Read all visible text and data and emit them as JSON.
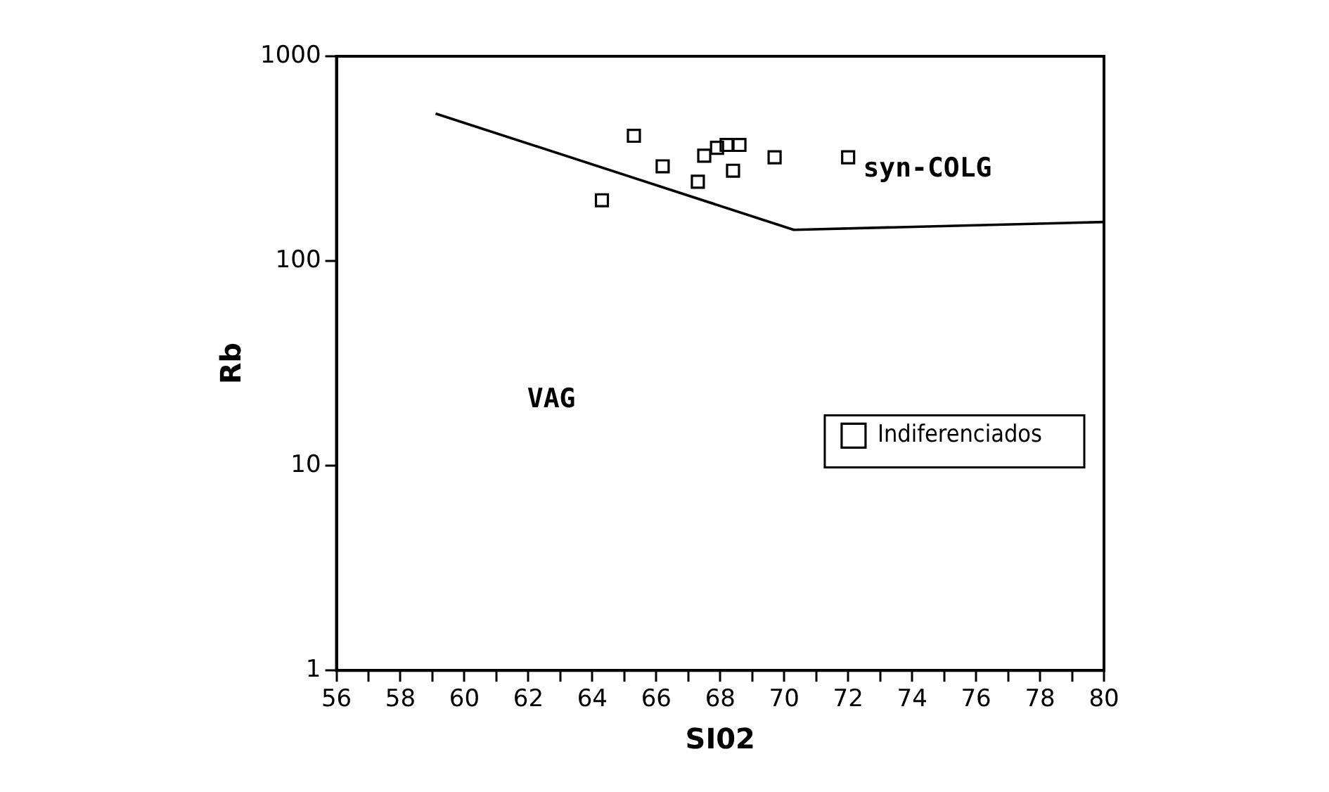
{
  "chart_data": {
    "type": "scatter",
    "xlabel": "SI02",
    "ylabel": "Rb",
    "xlim": [
      56,
      80
    ],
    "ylim": [
      1,
      1000
    ],
    "log": "y",
    "xticks": [
      56,
      {
        "value": 57,
        "label": null
      },
      58,
      {
        "value": 59,
        "label": null
      },
      60,
      {
        "value": 61,
        "label": null
      },
      62,
      {
        "value": 63,
        "label": null
      },
      64,
      {
        "value": 65,
        "label": null
      },
      66,
      {
        "value": 67,
        "label": null
      },
      68,
      {
        "value": 69,
        "label": null
      },
      70,
      {
        "value": 71,
        "label": null
      },
      72,
      {
        "value": 73,
        "label": null
      },
      74,
      {
        "value": 75,
        "label": null
      },
      76,
      {
        "value": 77,
        "label": null
      },
      78,
      {
        "value": 79,
        "label": null
      },
      80
    ],
    "yticks": [
      1,
      10,
      100,
      1000
    ],
    "grid": false,
    "legend": "bottom right",
    "marker": "square",
    "series": [
      {
        "name": "Indiferenciados",
        "color": "#000000",
        "x": [
          64.3,
          65.3,
          66.2,
          67.3,
          67.5,
          67.9,
          68.2,
          68.6,
          68.4,
          69.7,
          72.0
        ],
        "values": [
          198,
          409,
          290,
          244,
          327,
          357,
          369,
          369,
          276,
          321,
          321
        ]
      },
      {
        "type": "line",
        "color": "#000000",
        "marker": "none",
        "x": [
          59.1,
          70.3,
          80
        ],
        "values": [
          525,
          142,
          155
        ]
      }
    ],
    "annotations": [
      "syn-COLG",
      "VAG"
    ]
  }
}
